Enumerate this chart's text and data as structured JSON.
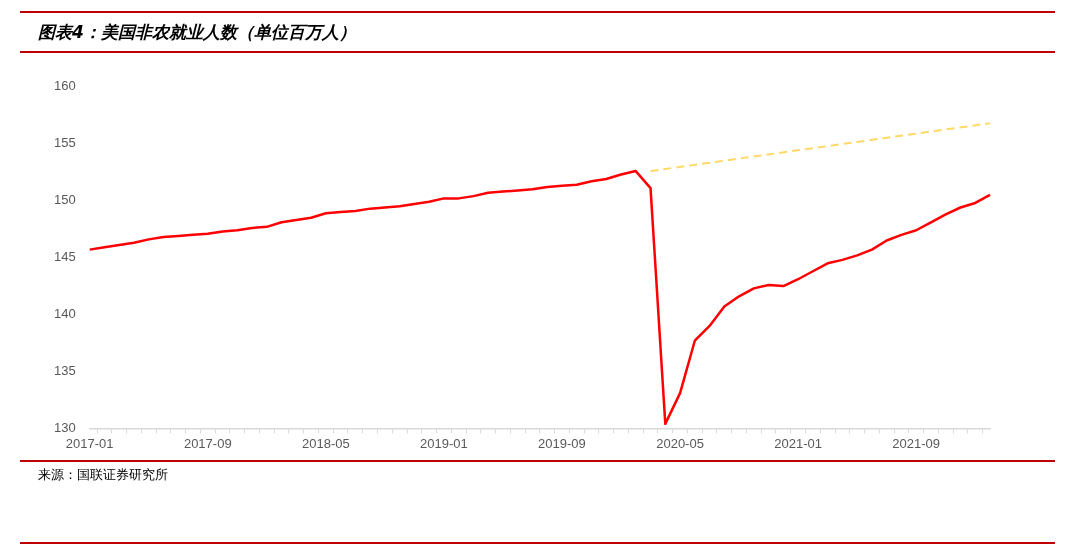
{
  "chart_data": {
    "type": "line",
    "title": "图表4：美国非农就业人数（单位百万人）",
    "categories": [
      "2017-01",
      null,
      null,
      null,
      null,
      null,
      null,
      null,
      "2017-09",
      null,
      null,
      null,
      null,
      null,
      null,
      null,
      "2018-05",
      null,
      null,
      null,
      null,
      null,
      null,
      null,
      "2019-01",
      null,
      null,
      null,
      null,
      null,
      null,
      null,
      "2019-09",
      null,
      null,
      null,
      null,
      null,
      null,
      null,
      "2020-05",
      null,
      null,
      null,
      null,
      null,
      null,
      null,
      "2021-01",
      null,
      null,
      null,
      null,
      null,
      null,
      null,
      "2021-09",
      null,
      null,
      null,
      null,
      null
    ],
    "series": [
      {
        "color": "#ff0000",
        "line_style": "solid",
        "values": [
          145.7,
          145.9,
          146.1,
          146.3,
          146.6,
          146.8,
          146.9,
          147.0,
          147.1,
          147.3,
          147.4,
          147.6,
          147.7,
          148.1,
          148.3,
          148.5,
          148.9,
          149.0,
          149.1,
          149.3,
          149.4,
          149.5,
          149.7,
          149.9,
          150.2,
          150.2,
          150.4,
          150.7,
          150.8,
          150.9,
          151.0,
          151.2,
          151.3,
          151.4,
          151.7,
          151.9,
          152.3,
          152.6,
          151.1,
          130.4,
          133.1,
          137.7,
          139.0,
          140.7,
          141.6,
          142.3,
          142.6,
          142.5,
          143.1,
          143.8,
          144.5,
          144.8,
          145.2,
          145.7,
          146.5,
          147.0,
          147.4,
          148.1,
          148.8,
          149.4,
          149.8,
          150.5
        ]
      },
      {
        "color": "#ffd966",
        "line_style": "dashed",
        "values": [
          null,
          null,
          null,
          null,
          null,
          null,
          null,
          null,
          null,
          null,
          null,
          null,
          null,
          null,
          null,
          null,
          null,
          null,
          null,
          null,
          null,
          null,
          null,
          null,
          null,
          null,
          null,
          null,
          null,
          null,
          null,
          null,
          null,
          null,
          null,
          null,
          null,
          null,
          152.6,
          null,
          null,
          null,
          null,
          null,
          null,
          null,
          null,
          null,
          null,
          null,
          null,
          null,
          null,
          null,
          null,
          null,
          null,
          null,
          null,
          null,
          null,
          156.8
        ]
      }
    ],
    "ylim": [
      130,
      160
    ],
    "yticks": [
      130,
      135,
      140,
      145,
      150,
      155,
      160
    ],
    "grid": false,
    "legend": false,
    "marker": "none",
    "annotations": [
      "来源：国联证券研究所"
    ]
  }
}
